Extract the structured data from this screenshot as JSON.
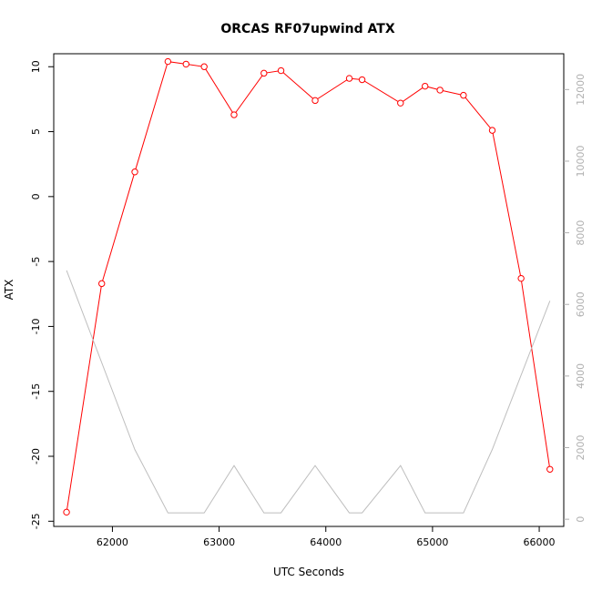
{
  "chart_data": {
    "type": "line",
    "title": "ORCAS RF07upwind ATX",
    "xlabel": "UTC Seconds",
    "ylabel": "ATX",
    "x_ticks": [
      62000,
      63000,
      64000,
      65000,
      66000
    ],
    "y_ticks": [
      10,
      5,
      0,
      -5,
      -10,
      -15,
      -20,
      -25
    ],
    "y2_ticks": [
      0,
      2000,
      4000,
      6000,
      8000,
      10000,
      12000
    ],
    "xlim": [
      61450,
      66230
    ],
    "ylim": [
      -25.4,
      11.0
    ],
    "y2lim": [
      -200,
      13000
    ],
    "grid": false,
    "series": [
      {
        "axis": "left",
        "color": "#ff0000",
        "marker": "circle",
        "x": [
          61570,
          61900,
          62210,
          62520,
          62690,
          62860,
          63140,
          63420,
          63580,
          63900,
          64220,
          64340,
          64700,
          64930,
          65070,
          65290,
          65560,
          65830,
          66100
        ],
        "y": [
          -24.3,
          -6.7,
          1.9,
          10.4,
          10.2,
          10.0,
          6.3,
          9.5,
          9.7,
          7.4,
          9.1,
          9.0,
          7.2,
          8.5,
          8.2,
          7.8,
          5.1,
          -6.3,
          -21.0
        ]
      },
      {
        "axis": "right",
        "color": "#bebebe",
        "marker": "none",
        "x": [
          61570,
          62210,
          62520,
          62860,
          63140,
          63420,
          63580,
          63900,
          64220,
          64340,
          64700,
          64930,
          65290,
          65560,
          66100
        ],
        "y": [
          6950,
          1950,
          180,
          180,
          1500,
          180,
          180,
          1500,
          180,
          180,
          1500,
          180,
          180,
          1950,
          6100
        ]
      }
    ]
  }
}
